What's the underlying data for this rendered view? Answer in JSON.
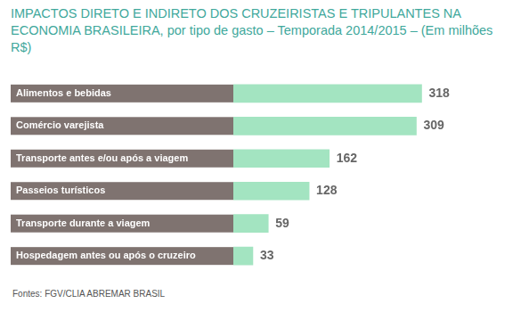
{
  "chart_data": {
    "type": "bar",
    "title": "IMPACTOS DIRETO E INDIRETO DOS CRUZEIRISTAS E TRIPULANTES NA ECONOMIA BRASILEIRA, por tipo de gasto – Temporada 2014/2015 – (Em milhões R$)",
    "annotations": [
      "Fontes: FGV/CLIA ABREMAR BRASIL"
    ],
    "categories": [
      "Alimentos e bebidas",
      "Comércio varejista",
      "Transporte antes e/ou após a viagem",
      "Passeios turísticos",
      "Transporte durante a viagem",
      "Hospedagem antes ou após o cruzeiro"
    ],
    "values": [
      318,
      309,
      162,
      128,
      59,
      33
    ],
    "color": "#a3e4c1",
    "orientation": "horizontal",
    "data_labels": true,
    "tick_labels": "y",
    "grid": false
  }
}
